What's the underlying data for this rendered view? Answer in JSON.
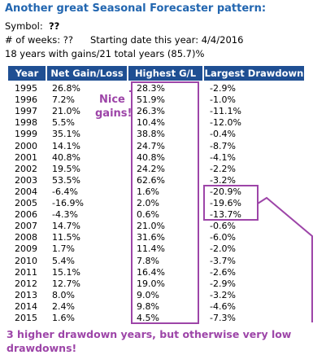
{
  "header": {
    "title": "Another great Seasonal Forecaster pattern:",
    "symbol_label": "Symbol:",
    "symbol_value": "??",
    "weeks": "# of weeks: ??",
    "start_date": "Starting date this year: 4/4/2016",
    "summary": "18 years with gains/21 total years (85.7)%"
  },
  "table": {
    "columns": [
      "Year",
      "Net Gain/Loss",
      "Highest G/L",
      "Largest Drawdown"
    ],
    "rows": [
      [
        "1995",
        "26.8%",
        "28.3%",
        "-2.9%"
      ],
      [
        "1996",
        "7.2%",
        "51.9%",
        "-1.0%"
      ],
      [
        "1997",
        "21.0%",
        "26.3%",
        "-11.1%"
      ],
      [
        "1998",
        "5.5%",
        "10.4%",
        "-12.0%"
      ],
      [
        "1999",
        "35.1%",
        "38.8%",
        "-0.4%"
      ],
      [
        "2000",
        "14.1%",
        "24.7%",
        "-8.7%"
      ],
      [
        "2001",
        "40.8%",
        "40.8%",
        "-4.1%"
      ],
      [
        "2002",
        "19.5%",
        "24.2%",
        "-2.2%"
      ],
      [
        "2003",
        "53.5%",
        "62.6%",
        "-3.2%"
      ],
      [
        "2004",
        "-6.4%",
        "1.6%",
        "-20.9%"
      ],
      [
        "2005",
        "-16.9%",
        "2.0%",
        "-19.6%"
      ],
      [
        "2006",
        "-4.3%",
        "0.6%",
        "-13.7%"
      ],
      [
        "2007",
        "14.7%",
        "21.0%",
        "-0.6%"
      ],
      [
        "2008",
        "11.5%",
        "31.6%",
        "-6.0%"
      ],
      [
        "2009",
        "1.7%",
        "11.4%",
        "-2.0%"
      ],
      [
        "2010",
        "5.4%",
        "7.8%",
        "-3.7%"
      ],
      [
        "2011",
        "15.1%",
        "16.4%",
        "-2.6%"
      ],
      [
        "2012",
        "12.7%",
        "19.0%",
        "-2.9%"
      ],
      [
        "2013",
        "8.0%",
        "9.0%",
        "-3.2%"
      ],
      [
        "2014",
        "2.4%",
        "9.8%",
        "-4.6%"
      ],
      [
        "2015",
        "1.6%",
        "4.5%",
        "-7.3%"
      ]
    ]
  },
  "annotations": {
    "gains": [
      "Nice",
      "gains!"
    ],
    "drawdown": [
      "3 higher drawdown years, but otherwise very low",
      "drawdowns!"
    ]
  }
}
